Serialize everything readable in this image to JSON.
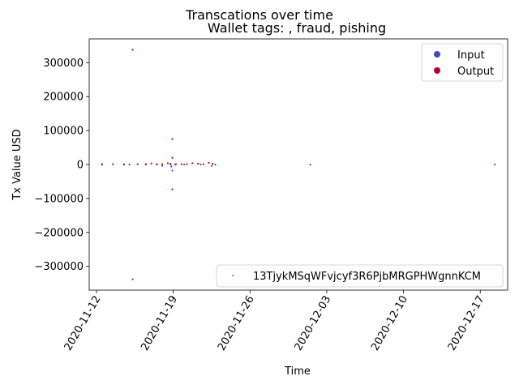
{
  "chart_data": {
    "type": "scatter",
    "suptitle": "Transcations over time",
    "title": "Wallet tags: , fraud, pishing",
    "xlabel": "Time",
    "ylabel": "Tx Value USD",
    "xlim": [
      "2020-11-11T08:00",
      "2020-12-19T12:00"
    ],
    "ylim": [
      -370000,
      370000
    ],
    "x_ticks": [
      "2020-11-12",
      "2020-11-19",
      "2020-11-26",
      "2020-12-03",
      "2020-12-10",
      "2020-12-17"
    ],
    "y_ticks": [
      -300000,
      -200000,
      -100000,
      0,
      100000,
      200000,
      300000
    ],
    "y_tick_labels": [
      "−300000",
      "−200000",
      "−100000",
      "0",
      "100000",
      "200000",
      "300000"
    ],
    "legend_top": {
      "placement": "upper-right",
      "entries": [
        {
          "label": "Input",
          "color": "#3b4cc0"
        },
        {
          "label": "Output",
          "color": "#b40426"
        }
      ]
    },
    "legend_bottom": {
      "placement": "lower-right",
      "entries": [
        {
          "label": "13TjykMSqWFvjcyf3R6PjbMRGPHWgnnKCM",
          "color": "#3d9a8b"
        }
      ]
    },
    "series": [
      {
        "name": "Input",
        "color": "#3b4cc0",
        "points": [
          [
            "2020-11-12T12:00",
            0
          ],
          [
            "2020-11-14T12:00",
            0
          ],
          [
            "2020-11-15T00:00",
            0
          ],
          [
            "2020-11-15T07:00",
            -338000
          ],
          [
            "2020-11-16T12:00",
            0
          ],
          [
            "2020-11-17T12:00",
            0
          ],
          [
            "2020-11-18T00:00",
            -4000
          ],
          [
            "2020-11-18T18:00",
            0
          ],
          [
            "2020-11-18T20:00",
            -6000
          ],
          [
            "2020-11-18T22:00",
            -18000
          ],
          [
            "2020-11-19T04:00",
            0
          ],
          [
            "2020-11-20T00:00",
            0
          ],
          [
            "2020-11-21T12:00",
            0
          ],
          [
            "2020-11-22T12:00",
            -4000
          ],
          [
            "2020-11-22T20:00",
            0
          ],
          [
            "2020-12-01T12:00",
            0
          ],
          [
            "2020-12-18T08:00",
            0
          ]
        ]
      },
      {
        "name": "Output",
        "color": "#b40426",
        "points": [
          [
            "2020-11-12T12:00",
            1000
          ],
          [
            "2020-11-13T12:00",
            1000
          ],
          [
            "2020-11-14T12:00",
            1000
          ],
          [
            "2020-11-15T07:00",
            338000
          ],
          [
            "2020-11-15T18:00",
            1000
          ],
          [
            "2020-11-16T12:00",
            1000
          ],
          [
            "2020-11-17T00:00",
            3000
          ],
          [
            "2020-11-17T12:00",
            1000
          ],
          [
            "2020-11-18T00:00",
            1000
          ],
          [
            "2020-11-18T12:00",
            4000
          ],
          [
            "2020-11-18T18:00",
            2000
          ],
          [
            "2020-11-18T22:00",
            75000
          ],
          [
            "2020-11-18T22:00",
            20000
          ],
          [
            "2020-11-18T22:00",
            -73000
          ],
          [
            "2020-11-19T06:00",
            1000
          ],
          [
            "2020-11-19T18:00",
            1000
          ],
          [
            "2020-11-20T06:00",
            1000
          ],
          [
            "2020-11-20T18:00",
            4000
          ],
          [
            "2020-11-21T06:00",
            2000
          ],
          [
            "2020-11-21T18:00",
            1000
          ],
          [
            "2020-11-22T06:00",
            5000
          ],
          [
            "2020-11-22T14:00",
            2000
          ]
        ]
      }
    ]
  }
}
